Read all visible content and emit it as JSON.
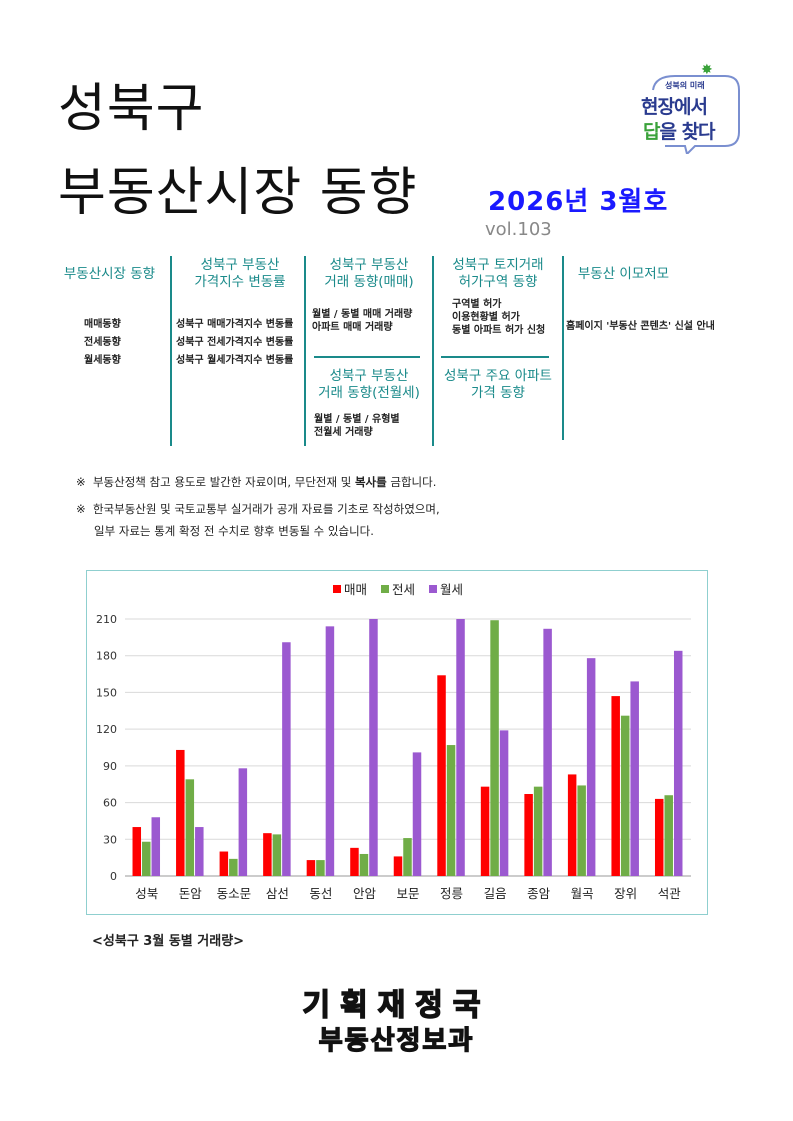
{
  "header": {
    "title_line1": "성북구",
    "title_line2": "부동산시장 동향",
    "issue": "2026년 3월호",
    "volume": "vol.103"
  },
  "logo": {
    "small": "성북의 미래",
    "line1": "현장에서",
    "line2a": "답",
    "line2b": "을 찾다"
  },
  "toc": {
    "col1": {
      "heading": "부동산시장 동향",
      "items": [
        "매매동향",
        "전세동향",
        "월세동향"
      ]
    },
    "col2": {
      "heading_l1": "성북구 부동산",
      "heading_l2": "가격지수 변동률",
      "items": [
        "성북구 매매가격지수 변동률",
        "성북구 전세가격지수 변동률",
        "성북구 월세가격지수 변동률"
      ]
    },
    "col3a": {
      "heading_l1": "성북구 부동산",
      "heading_l2": "거래 동향(매매)",
      "items": [
        "월별 / 동별 매매 거래량",
        "아파트 매매 거래량"
      ]
    },
    "col3b": {
      "heading_l1": "성북구 부동산",
      "heading_l2": "거래 동향(전월세)",
      "items": [
        "월별 / 동별 / 유형별",
        "전월세 거래량"
      ]
    },
    "col4a": {
      "heading_l1": "성북구 토지거래",
      "heading_l2": "허가구역 동향",
      "items": [
        "구역별 허가",
        "이용현황별 허가",
        "동별 아파트 허가 신청"
      ]
    },
    "col4b": {
      "heading_l1": "성북구 주요 아파트",
      "heading_l2": "가격 동향"
    },
    "col5": {
      "heading": "부동산 이모저모",
      "items": [
        "홈페이지 '부동산 콘텐츠' 신설 안내"
      ]
    }
  },
  "notes": {
    "mark": "※",
    "note1_pre": "부동산정책 참고 용도로 발간한 자료이며, 무단전재 및 ",
    "note1_bold": "복사를",
    "note1_post": " 금합니다.",
    "note2_l1": "한국부동산원 및 국토교통부 실거래가 공개 자료를 기초로 작성하였으며,",
    "note2_l2": "일부 자료는 통계 확정 전 수치로 향후 변동될 수 있습니다."
  },
  "chart_data": {
    "type": "bar",
    "title": "",
    "xlabel": "",
    "ylabel": "",
    "ylim": [
      0,
      210
    ],
    "yticks": [
      0,
      30,
      60,
      90,
      120,
      150,
      180,
      210
    ],
    "legend_position": "top-center",
    "grid": true,
    "categories": [
      "성북",
      "돈암",
      "동소문",
      "삼선",
      "동선",
      "안암",
      "보문",
      "정릉",
      "길음",
      "종암",
      "월곡",
      "장위",
      "석관"
    ],
    "series": [
      {
        "name": "매매",
        "color": "#ff0000",
        "values": [
          40,
          103,
          20,
          35,
          13,
          23,
          16,
          164,
          73,
          67,
          83,
          147,
          63
        ]
      },
      {
        "name": "전세",
        "color": "#70ad47",
        "values": [
          28,
          79,
          14,
          34,
          13,
          18,
          31,
          107,
          209,
          73,
          74,
          131,
          66
        ]
      },
      {
        "name": "월세",
        "color": "#9b59d0",
        "values": [
          48,
          40,
          88,
          191,
          204,
          210,
          101,
          210,
          119,
          202,
          178,
          159,
          184
        ]
      }
    ]
  },
  "chart_caption": "<성북구 3월 동별 거래량>",
  "footer": {
    "dept1": "기획재정국",
    "dept2": "부동산정보과"
  }
}
